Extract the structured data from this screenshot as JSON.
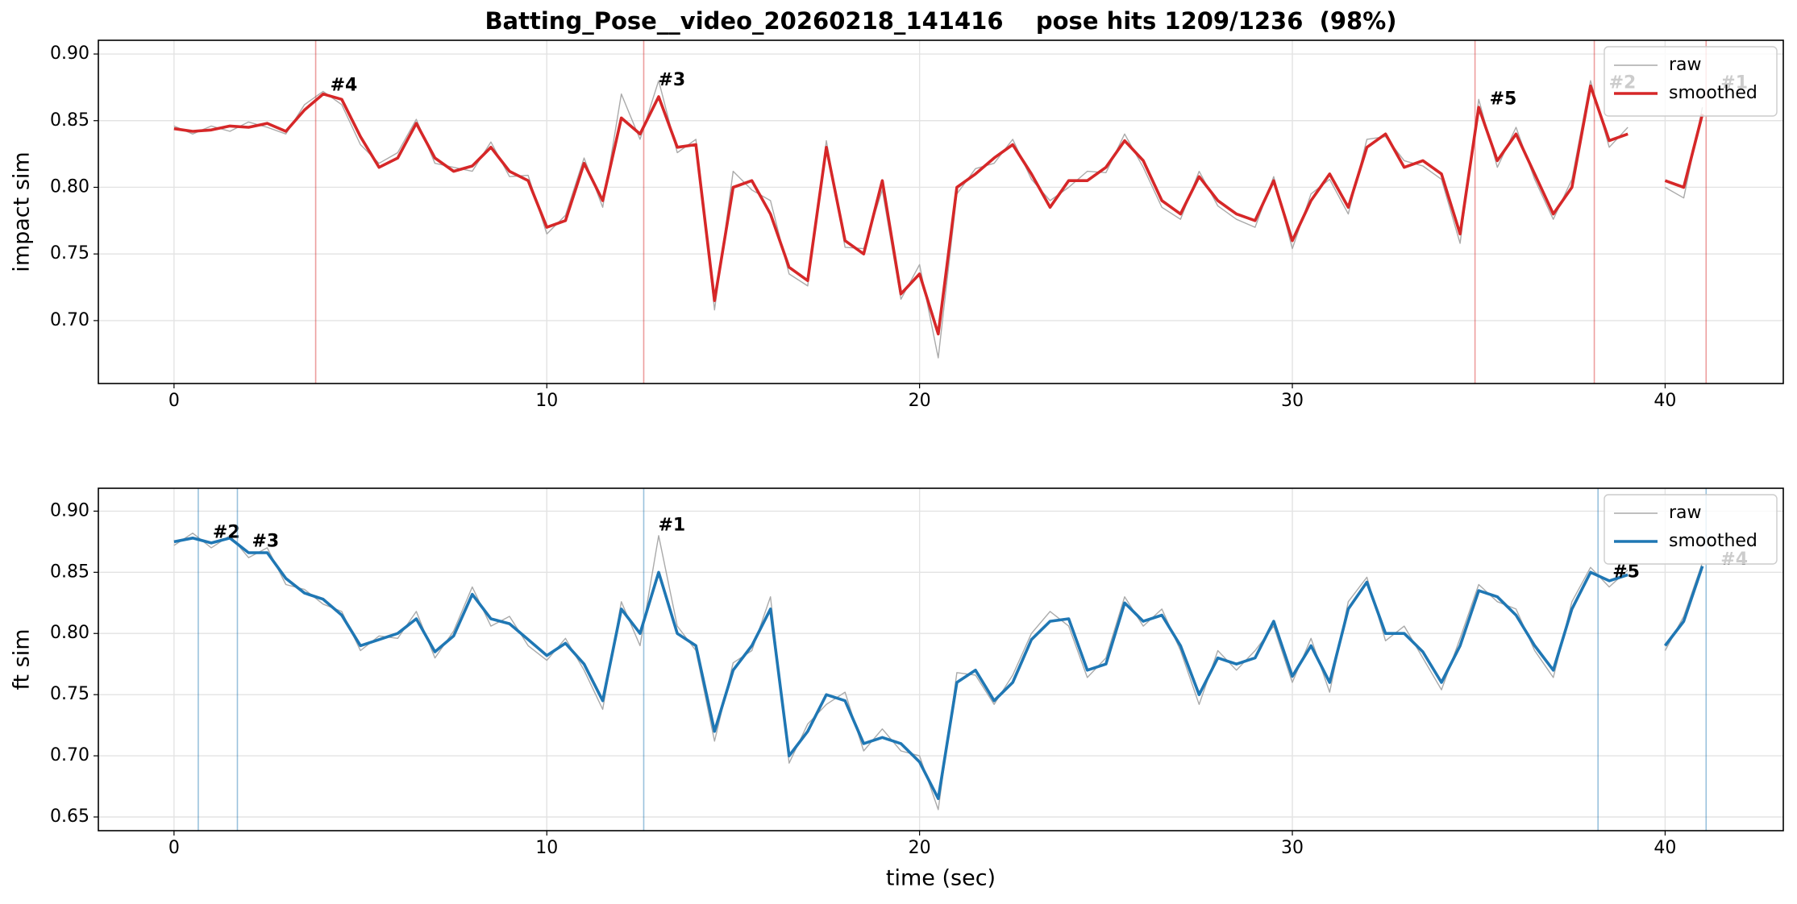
{
  "title": "Batting_Pose__video_20260218_141416    pose hits 1209/1236  (98%)",
  "chart_data": [
    {
      "type": "line",
      "ylabel": "impact sim",
      "x": [
        0,
        0.5,
        1,
        1.5,
        2,
        2.5,
        3,
        3.5,
        4,
        4.5,
        5,
        5.5,
        6,
        6.5,
        7,
        7.5,
        8,
        8.5,
        9,
        9.5,
        10,
        10.5,
        11,
        11.5,
        12,
        12.5,
        13,
        13.5,
        14,
        14.5,
        15,
        15.5,
        16,
        16.5,
        17,
        17.5,
        18,
        18.5,
        19,
        19.5,
        20,
        20.5,
        21,
        21.5,
        22,
        22.5,
        23,
        23.5,
        24,
        24.5,
        25,
        25.5,
        26,
        26.5,
        27,
        27.5,
        28,
        28.5,
        29,
        29.5,
        30,
        30.5,
        31,
        31.5,
        32,
        32.5,
        33,
        33.5,
        34,
        34.5,
        35,
        35.5,
        36,
        36.5,
        37,
        37.5,
        38,
        38.5,
        39,
        39.5,
        40,
        40.5,
        41
      ],
      "series": [
        {
          "name": "raw",
          "color": "#aaaaaa",
          "values": [
            0.846,
            0.84,
            0.846,
            0.842,
            0.849,
            0.845,
            0.84,
            0.862,
            0.872,
            0.862,
            0.832,
            0.818,
            0.826,
            0.851,
            0.818,
            0.815,
            0.812,
            0.834,
            0.808,
            0.809,
            0.765,
            0.779,
            0.822,
            0.785,
            0.87,
            0.836,
            0.88,
            0.826,
            0.836,
            0.708,
            0.812,
            0.798,
            0.79,
            0.735,
            0.726,
            0.835,
            0.755,
            0.754,
            0.798,
            0.716,
            0.742,
            0.672,
            0.795,
            0.814,
            0.818,
            0.836,
            0.806,
            0.79,
            0.8,
            0.812,
            0.811,
            0.84,
            0.815,
            0.785,
            0.776,
            0.812,
            0.786,
            0.776,
            0.77,
            0.808,
            0.754,
            0.795,
            0.806,
            0.78,
            0.836,
            0.838,
            0.82,
            0.816,
            0.806,
            0.758,
            0.866,
            0.815,
            0.845,
            0.806,
            0.776,
            0.806,
            0.88,
            0.83,
            0.845,
            null,
            0.8,
            0.792,
            0.86
          ]
        },
        {
          "name": "smoothed",
          "color": "#d62728",
          "values": [
            0.844,
            0.842,
            0.843,
            0.846,
            0.845,
            0.848,
            0.842,
            0.858,
            0.87,
            0.866,
            0.838,
            0.815,
            0.822,
            0.848,
            0.822,
            0.812,
            0.816,
            0.83,
            0.812,
            0.805,
            0.77,
            0.775,
            0.818,
            0.79,
            0.852,
            0.84,
            0.868,
            0.83,
            0.832,
            0.715,
            0.8,
            0.805,
            0.78,
            0.74,
            0.73,
            0.83,
            0.76,
            0.75,
            0.805,
            0.72,
            0.735,
            0.69,
            0.8,
            0.81,
            0.822,
            0.832,
            0.81,
            0.785,
            0.805,
            0.805,
            0.815,
            0.835,
            0.82,
            0.79,
            0.78,
            0.808,
            0.79,
            0.78,
            0.775,
            0.805,
            0.76,
            0.79,
            0.81,
            0.785,
            0.83,
            0.84,
            0.815,
            0.82,
            0.81,
            0.765,
            0.86,
            0.82,
            0.84,
            0.81,
            0.78,
            0.8,
            0.876,
            0.835,
            0.84,
            null,
            0.805,
            0.8,
            0.855
          ]
        }
      ],
      "markers": [
        {
          "x": 3.8,
          "y": 0.876,
          "label": "#4"
        },
        {
          "x": 12.6,
          "y": 0.88,
          "label": "#3"
        },
        {
          "x": 34.9,
          "y": 0.866,
          "label": "#5"
        },
        {
          "x": 38.1,
          "y": 0.878,
          "label": "#2"
        },
        {
          "x": 41.1,
          "y": 0.878,
          "label": "#1"
        }
      ],
      "xlim": [
        -2.03,
        43.17
      ],
      "ylim": [
        0.6528,
        0.9103
      ],
      "xticks": [
        0,
        10,
        20,
        30,
        40
      ],
      "yticks": [
        {
          "value": 0.7,
          "label": "0.70"
        },
        0.75,
        {
          "value": 0.8,
          "label": "0.80"
        },
        0.85,
        {
          "value": 0.9,
          "label": "0.90"
        }
      ],
      "grid": true,
      "legend": "upper right"
    },
    {
      "type": "line",
      "ylabel": "ft sim",
      "xlabel": "time (sec)",
      "x": [
        0,
        0.5,
        1,
        1.5,
        2,
        2.5,
        3,
        3.5,
        4,
        4.5,
        5,
        5.5,
        6,
        6.5,
        7,
        7.5,
        8,
        8.5,
        9,
        9.5,
        10,
        10.5,
        11,
        11.5,
        12,
        12.5,
        13,
        13.5,
        14,
        14.5,
        15,
        15.5,
        16,
        16.5,
        17,
        17.5,
        18,
        18.5,
        19,
        19.5,
        20,
        20.5,
        21,
        21.5,
        22,
        22.5,
        23,
        23.5,
        24,
        24.5,
        25,
        25.5,
        26,
        26.5,
        27,
        27.5,
        28,
        28.5,
        29,
        29.5,
        30,
        30.5,
        31,
        31.5,
        32,
        32.5,
        33,
        33.5,
        34,
        34.5,
        35,
        35.5,
        36,
        36.5,
        37,
        37.5,
        38,
        38.5,
        39,
        39.5,
        40,
        40.5,
        41
      ],
      "series": [
        {
          "name": "raw",
          "color": "#aaaaaa",
          "values": [
            0.872,
            0.882,
            0.87,
            0.88,
            0.862,
            0.87,
            0.84,
            0.836,
            0.824,
            0.818,
            0.786,
            0.798,
            0.796,
            0.818,
            0.78,
            0.802,
            0.838,
            0.806,
            0.814,
            0.79,
            0.778,
            0.796,
            0.77,
            0.738,
            0.826,
            0.79,
            0.88,
            0.806,
            0.786,
            0.712,
            0.776,
            0.786,
            0.83,
            0.694,
            0.726,
            0.742,
            0.752,
            0.704,
            0.722,
            0.704,
            0.7,
            0.656,
            0.768,
            0.766,
            0.742,
            0.766,
            0.8,
            0.818,
            0.806,
            0.764,
            0.78,
            0.83,
            0.806,
            0.82,
            0.786,
            0.742,
            0.786,
            0.77,
            0.786,
            0.806,
            0.76,
            0.796,
            0.752,
            0.826,
            0.846,
            0.794,
            0.806,
            0.78,
            0.754,
            0.796,
            0.84,
            0.826,
            0.82,
            0.786,
            0.764,
            0.826,
            0.854,
            0.838,
            0.852,
            null,
            0.786,
            0.814,
            0.858
          ]
        },
        {
          "name": "smoothed",
          "color": "#1f77b4",
          "values": [
            0.875,
            0.878,
            0.874,
            0.878,
            0.866,
            0.866,
            0.845,
            0.833,
            0.828,
            0.815,
            0.79,
            0.795,
            0.8,
            0.812,
            0.785,
            0.798,
            0.832,
            0.812,
            0.808,
            0.795,
            0.782,
            0.792,
            0.775,
            0.745,
            0.82,
            0.8,
            0.85,
            0.8,
            0.79,
            0.72,
            0.77,
            0.79,
            0.82,
            0.7,
            0.72,
            0.75,
            0.745,
            0.71,
            0.715,
            0.71,
            0.695,
            0.665,
            0.76,
            0.77,
            0.745,
            0.76,
            0.795,
            0.81,
            0.812,
            0.77,
            0.775,
            0.825,
            0.81,
            0.815,
            0.79,
            0.75,
            0.78,
            0.775,
            0.78,
            0.81,
            0.765,
            0.79,
            0.76,
            0.82,
            0.842,
            0.8,
            0.8,
            0.785,
            0.76,
            0.79,
            0.835,
            0.83,
            0.815,
            0.79,
            0.77,
            0.82,
            0.85,
            0.843,
            0.848,
            null,
            0.79,
            0.81,
            0.855
          ]
        }
      ],
      "markers": [
        {
          "x": 0.65,
          "y": 0.882,
          "label": "#2"
        },
        {
          "x": 1.7,
          "y": 0.875,
          "label": "#3"
        },
        {
          "x": 12.6,
          "y": 0.888,
          "label": "#1"
        },
        {
          "x": 38.2,
          "y": 0.85,
          "label": "#5"
        },
        {
          "x": 41.1,
          "y": 0.86,
          "label": "#4"
        }
      ],
      "xlim": [
        -2.03,
        43.17
      ],
      "ylim": [
        0.6388,
        0.9187
      ],
      "xticks": [
        0,
        10,
        20,
        30,
        40
      ],
      "yticks": [
        0.65,
        {
          "value": 0.7,
          "label": "0.70"
        },
        0.75,
        {
          "value": 0.8,
          "label": "0.80"
        },
        0.85,
        {
          "value": 0.9,
          "label": "0.90"
        }
      ],
      "grid": true,
      "legend": "upper right"
    }
  ]
}
